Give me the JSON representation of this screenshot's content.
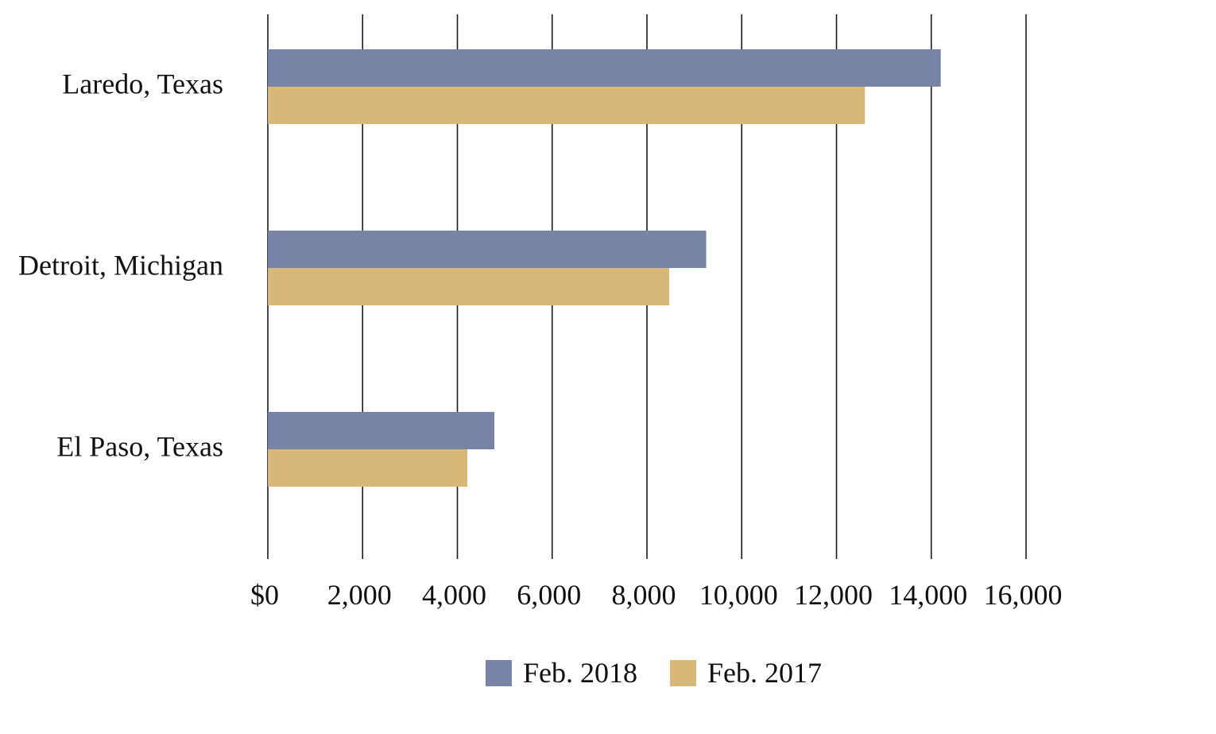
{
  "chart_data": {
    "type": "bar",
    "orientation": "horizontal",
    "categories": [
      "Laredo, Texas",
      "Detroit, Michigan",
      "El Paso, Texas"
    ],
    "series": [
      {
        "name": "Feb. 2018",
        "color": "#7784a5",
        "values": [
          14200,
          9250,
          4780
        ]
      },
      {
        "name": "Feb. 2017",
        "color": "#d7b878",
        "values": [
          12600,
          8470,
          4210
        ]
      }
    ],
    "xlim": [
      0,
      16000
    ],
    "x_ticks": [
      0,
      2000,
      4000,
      6000,
      8000,
      10000,
      12000,
      14000,
      16000
    ],
    "x_tick_labels": [
      "$0",
      "2,000",
      "4,000",
      "6,000",
      "8,000",
      "10,000",
      "12,000",
      "14,000",
      "16,000"
    ],
    "grid": "vertical",
    "legend_position": "bottom-center",
    "title": "",
    "xlabel": "",
    "ylabel": ""
  }
}
